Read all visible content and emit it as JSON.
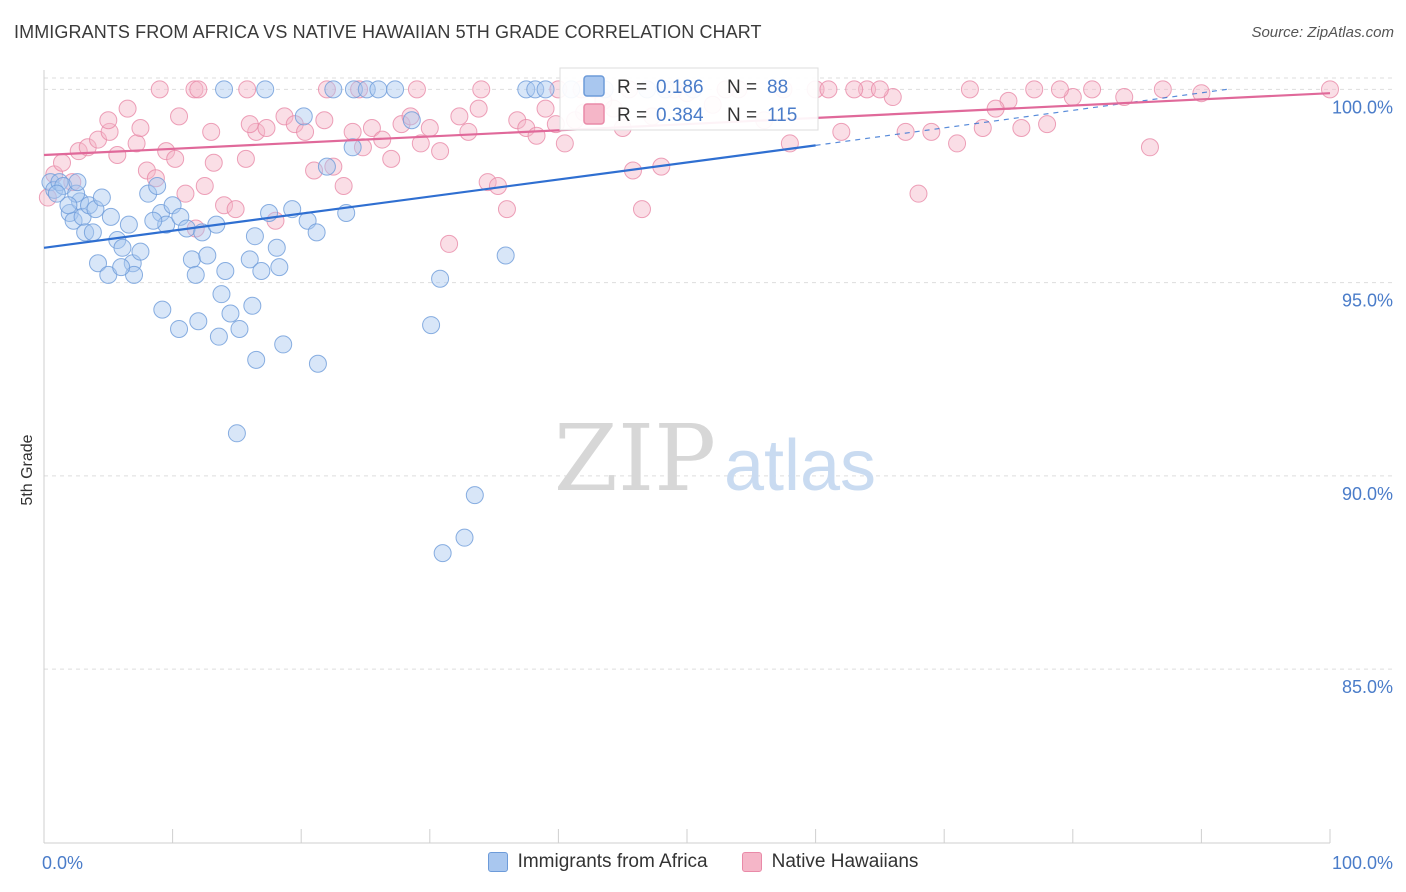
{
  "header": {
    "title": "IMMIGRANTS FROM AFRICA VS NATIVE HAWAIIAN 5TH GRADE CORRELATION CHART",
    "source": "Source: ZipAtlas.com"
  },
  "watermark": {
    "zip": "ZIP",
    "atlas": "atlas"
  },
  "colors": {
    "blue_fill": "#a9c7ef",
    "blue_stroke": "#6d9bd9",
    "blue_line": "#2f6fd1",
    "pink_fill": "#f5b6c8",
    "pink_stroke": "#e98aa8",
    "pink_line": "#e0699a",
    "tick_label": "#4a7cc9",
    "grid": "#dddddd"
  },
  "chart_data": {
    "type": "scatter",
    "title": "IMMIGRANTS FROM AFRICA VS NATIVE HAWAIIAN 5TH GRADE CORRELATION CHART",
    "xlabel": "",
    "ylabel": "5th Grade",
    "xlim": [
      0,
      100
    ],
    "ylim": [
      80.5,
      100.5
    ],
    "x_tick_labels": [
      "0.0%",
      "100.0%"
    ],
    "y_ticks": [
      85,
      90,
      95,
      100
    ],
    "y_tick_labels": [
      "85.0%",
      "90.0%",
      "95.0%",
      "100.0%"
    ],
    "grid": true,
    "legend_position": "top-center",
    "legend": {
      "rows": [
        {
          "r_label": "R =",
          "r_value": "0.186",
          "n_label": "N =",
          "n_value": "88"
        },
        {
          "r_label": "R =",
          "r_value": "0.384",
          "n_label": "N =",
          "n_value": "115"
        }
      ]
    },
    "series": [
      {
        "name": "Immigrants from Africa",
        "R": 0.186,
        "N": 88,
        "trend": {
          "x": [
            0,
            60,
            92
          ],
          "y": [
            95.9,
            98.55,
            100.0
          ],
          "solid_until_x": 60
        },
        "points": [
          [
            0.5,
            97.6
          ],
          [
            0.8,
            97.4
          ],
          [
            1.2,
            97.6
          ],
          [
            1.5,
            97.5
          ],
          [
            2.0,
            96.8
          ],
          [
            2.3,
            96.6
          ],
          [
            2.8,
            97.1
          ],
          [
            3.0,
            96.7
          ],
          [
            3.5,
            97.0
          ],
          [
            4.0,
            96.9
          ],
          [
            2.5,
            97.3
          ],
          [
            3.2,
            96.3
          ],
          [
            4.5,
            97.2
          ],
          [
            5.2,
            96.7
          ],
          [
            5.7,
            96.1
          ],
          [
            6.1,
            95.9
          ],
          [
            6.6,
            96.5
          ],
          [
            6.9,
            95.5
          ],
          [
            7.5,
            95.8
          ],
          [
            8.1,
            97.3
          ],
          [
            8.8,
            97.5
          ],
          [
            9.1,
            96.8
          ],
          [
            9.5,
            96.5
          ],
          [
            10.0,
            97.0
          ],
          [
            10.6,
            96.7
          ],
          [
            11.1,
            96.4
          ],
          [
            11.5,
            95.6
          ],
          [
            12.3,
            96.3
          ],
          [
            12.7,
            95.7
          ],
          [
            13.4,
            96.5
          ],
          [
            14.1,
            95.3
          ],
          [
            14.5,
            94.2
          ],
          [
            15.2,
            93.8
          ],
          [
            16.0,
            95.6
          ],
          [
            16.4,
            96.2
          ],
          [
            16.9,
            95.3
          ],
          [
            17.5,
            96.8
          ],
          [
            18.1,
            95.9
          ],
          [
            18.6,
            93.4
          ],
          [
            19.3,
            96.9
          ],
          [
            20.2,
            99.3
          ],
          [
            20.5,
            96.6
          ],
          [
            21.2,
            96.3
          ],
          [
            22.0,
            98.0
          ],
          [
            23.5,
            96.8
          ],
          [
            24.1,
            100.0
          ],
          [
            25.1,
            100.0
          ],
          [
            26.0,
            100.0
          ],
          [
            27.3,
            100.0
          ],
          [
            28.6,
            99.2
          ],
          [
            30.1,
            93.9
          ],
          [
            30.8,
            95.1
          ],
          [
            31.0,
            88.0
          ],
          [
            32.7,
            88.4
          ],
          [
            33.5,
            89.5
          ],
          [
            35.9,
            95.7
          ],
          [
            37.5,
            100.0
          ],
          [
            38.2,
            100.0
          ],
          [
            39.0,
            100.0
          ],
          [
            41.0,
            100.0
          ],
          [
            43.6,
            100.0
          ],
          [
            46.9,
            100.0
          ],
          [
            48.3,
            100.0
          ],
          [
            50.5,
            100.0
          ],
          [
            14.0,
            100.0
          ],
          [
            17.2,
            100.0
          ],
          [
            22.5,
            100.0
          ],
          [
            9.2,
            94.3
          ],
          [
            10.5,
            93.8
          ],
          [
            12.0,
            94.0
          ],
          [
            13.6,
            93.6
          ],
          [
            16.2,
            94.4
          ],
          [
            11.8,
            95.2
          ],
          [
            13.8,
            94.7
          ],
          [
            16.5,
            93.0
          ],
          [
            7.0,
            95.2
          ],
          [
            4.2,
            95.5
          ],
          [
            5.0,
            95.2
          ],
          [
            6.0,
            95.4
          ],
          [
            8.5,
            96.6
          ],
          [
            3.8,
            96.3
          ],
          [
            1.9,
            97.0
          ],
          [
            1.0,
            97.3
          ],
          [
            2.6,
            97.6
          ],
          [
            21.3,
            92.9
          ],
          [
            18.3,
            95.4
          ],
          [
            15.0,
            91.1
          ],
          [
            24.0,
            98.5
          ]
        ]
      },
      {
        "name": "Native Hawaiians",
        "R": 0.384,
        "N": 115,
        "trend": {
          "x": [
            0,
            100
          ],
          "y": [
            98.3,
            99.9
          ]
        },
        "points": [
          [
            0.3,
            97.2
          ],
          [
            0.8,
            97.8
          ],
          [
            1.4,
            98.1
          ],
          [
            2.2,
            97.6
          ],
          [
            2.7,
            98.4
          ],
          [
            3.4,
            98.5
          ],
          [
            4.2,
            98.7
          ],
          [
            5.1,
            98.9
          ],
          [
            5.7,
            98.3
          ],
          [
            6.5,
            99.5
          ],
          [
            7.2,
            98.6
          ],
          [
            8.0,
            97.9
          ],
          [
            8.7,
            97.7
          ],
          [
            9.5,
            98.4
          ],
          [
            10.2,
            98.2
          ],
          [
            11.0,
            97.3
          ],
          [
            11.8,
            96.4
          ],
          [
            12.5,
            97.5
          ],
          [
            13.2,
            98.1
          ],
          [
            14.0,
            97.0
          ],
          [
            14.9,
            96.9
          ],
          [
            15.7,
            98.2
          ],
          [
            16.5,
            98.9
          ],
          [
            17.3,
            99.0
          ],
          [
            18.0,
            96.6
          ],
          [
            18.7,
            99.3
          ],
          [
            19.5,
            99.1
          ],
          [
            20.3,
            98.9
          ],
          [
            21.0,
            97.9
          ],
          [
            21.8,
            99.2
          ],
          [
            22.5,
            98.0
          ],
          [
            23.3,
            97.5
          ],
          [
            24.0,
            98.9
          ],
          [
            24.8,
            98.5
          ],
          [
            25.5,
            99.0
          ],
          [
            26.3,
            98.7
          ],
          [
            27.0,
            98.2
          ],
          [
            27.8,
            99.1
          ],
          [
            28.5,
            99.3
          ],
          [
            29.3,
            98.6
          ],
          [
            30.0,
            99.0
          ],
          [
            30.8,
            98.4
          ],
          [
            31.5,
            96.0
          ],
          [
            32.3,
            99.3
          ],
          [
            33.0,
            98.9
          ],
          [
            33.8,
            99.5
          ],
          [
            34.5,
            97.6
          ],
          [
            35.3,
            97.5
          ],
          [
            36.0,
            96.9
          ],
          [
            36.8,
            99.2
          ],
          [
            37.5,
            99.0
          ],
          [
            38.3,
            98.8
          ],
          [
            39.0,
            99.5
          ],
          [
            39.8,
            99.1
          ],
          [
            40.5,
            98.6
          ],
          [
            41.3,
            99.2
          ],
          [
            42.0,
            99.4
          ],
          [
            42.8,
            100.0
          ],
          [
            43.5,
            99.7
          ],
          [
            44.3,
            99.5
          ],
          [
            45.0,
            99.0
          ],
          [
            45.8,
            97.9
          ],
          [
            46.5,
            96.9
          ],
          [
            47.3,
            99.3
          ],
          [
            48.0,
            98.0
          ],
          [
            50.0,
            99.9
          ],
          [
            52.0,
            99.6
          ],
          [
            54.0,
            100.0
          ],
          [
            56.0,
            99.2
          ],
          [
            58.0,
            98.6
          ],
          [
            60.0,
            100.0
          ],
          [
            62.0,
            98.9
          ],
          [
            64.0,
            100.0
          ],
          [
            66.0,
            99.8
          ],
          [
            67.0,
            98.9
          ],
          [
            68.0,
            97.3
          ],
          [
            69.0,
            98.9
          ],
          [
            71.0,
            98.6
          ],
          [
            73.0,
            99.0
          ],
          [
            75.0,
            99.7
          ],
          [
            76.0,
            99.0
          ],
          [
            78.0,
            99.1
          ],
          [
            80.0,
            99.8
          ],
          [
            86.0,
            98.5
          ],
          [
            100.0,
            100.0
          ],
          [
            9.0,
            100.0
          ],
          [
            11.7,
            100.0
          ],
          [
            12.0,
            100.0
          ],
          [
            15.8,
            100.0
          ],
          [
            22.0,
            100.0
          ],
          [
            24.5,
            100.0
          ],
          [
            29.0,
            100.0
          ],
          [
            34.0,
            100.0
          ],
          [
            40.0,
            100.0
          ],
          [
            41.8,
            100.0
          ],
          [
            45.5,
            100.0
          ],
          [
            49.0,
            100.0
          ],
          [
            53.0,
            100.0
          ],
          [
            57.5,
            100.0
          ],
          [
            61.0,
            100.0
          ],
          [
            63.0,
            100.0
          ],
          [
            65.0,
            100.0
          ],
          [
            72.0,
            100.0
          ],
          [
            74.0,
            99.5
          ],
          [
            77.0,
            100.0
          ],
          [
            79.0,
            100.0
          ],
          [
            81.5,
            100.0
          ],
          [
            84.0,
            99.8
          ],
          [
            87.0,
            100.0
          ],
          [
            90.0,
            99.9
          ],
          [
            5.0,
            99.2
          ],
          [
            7.5,
            99.0
          ],
          [
            10.5,
            99.3
          ],
          [
            13.0,
            98.9
          ],
          [
            16.0,
            99.1
          ]
        ]
      }
    ]
  },
  "legend_bottom": [
    {
      "label": "Immigrants from Africa"
    },
    {
      "label": "Native Hawaiians"
    }
  ]
}
